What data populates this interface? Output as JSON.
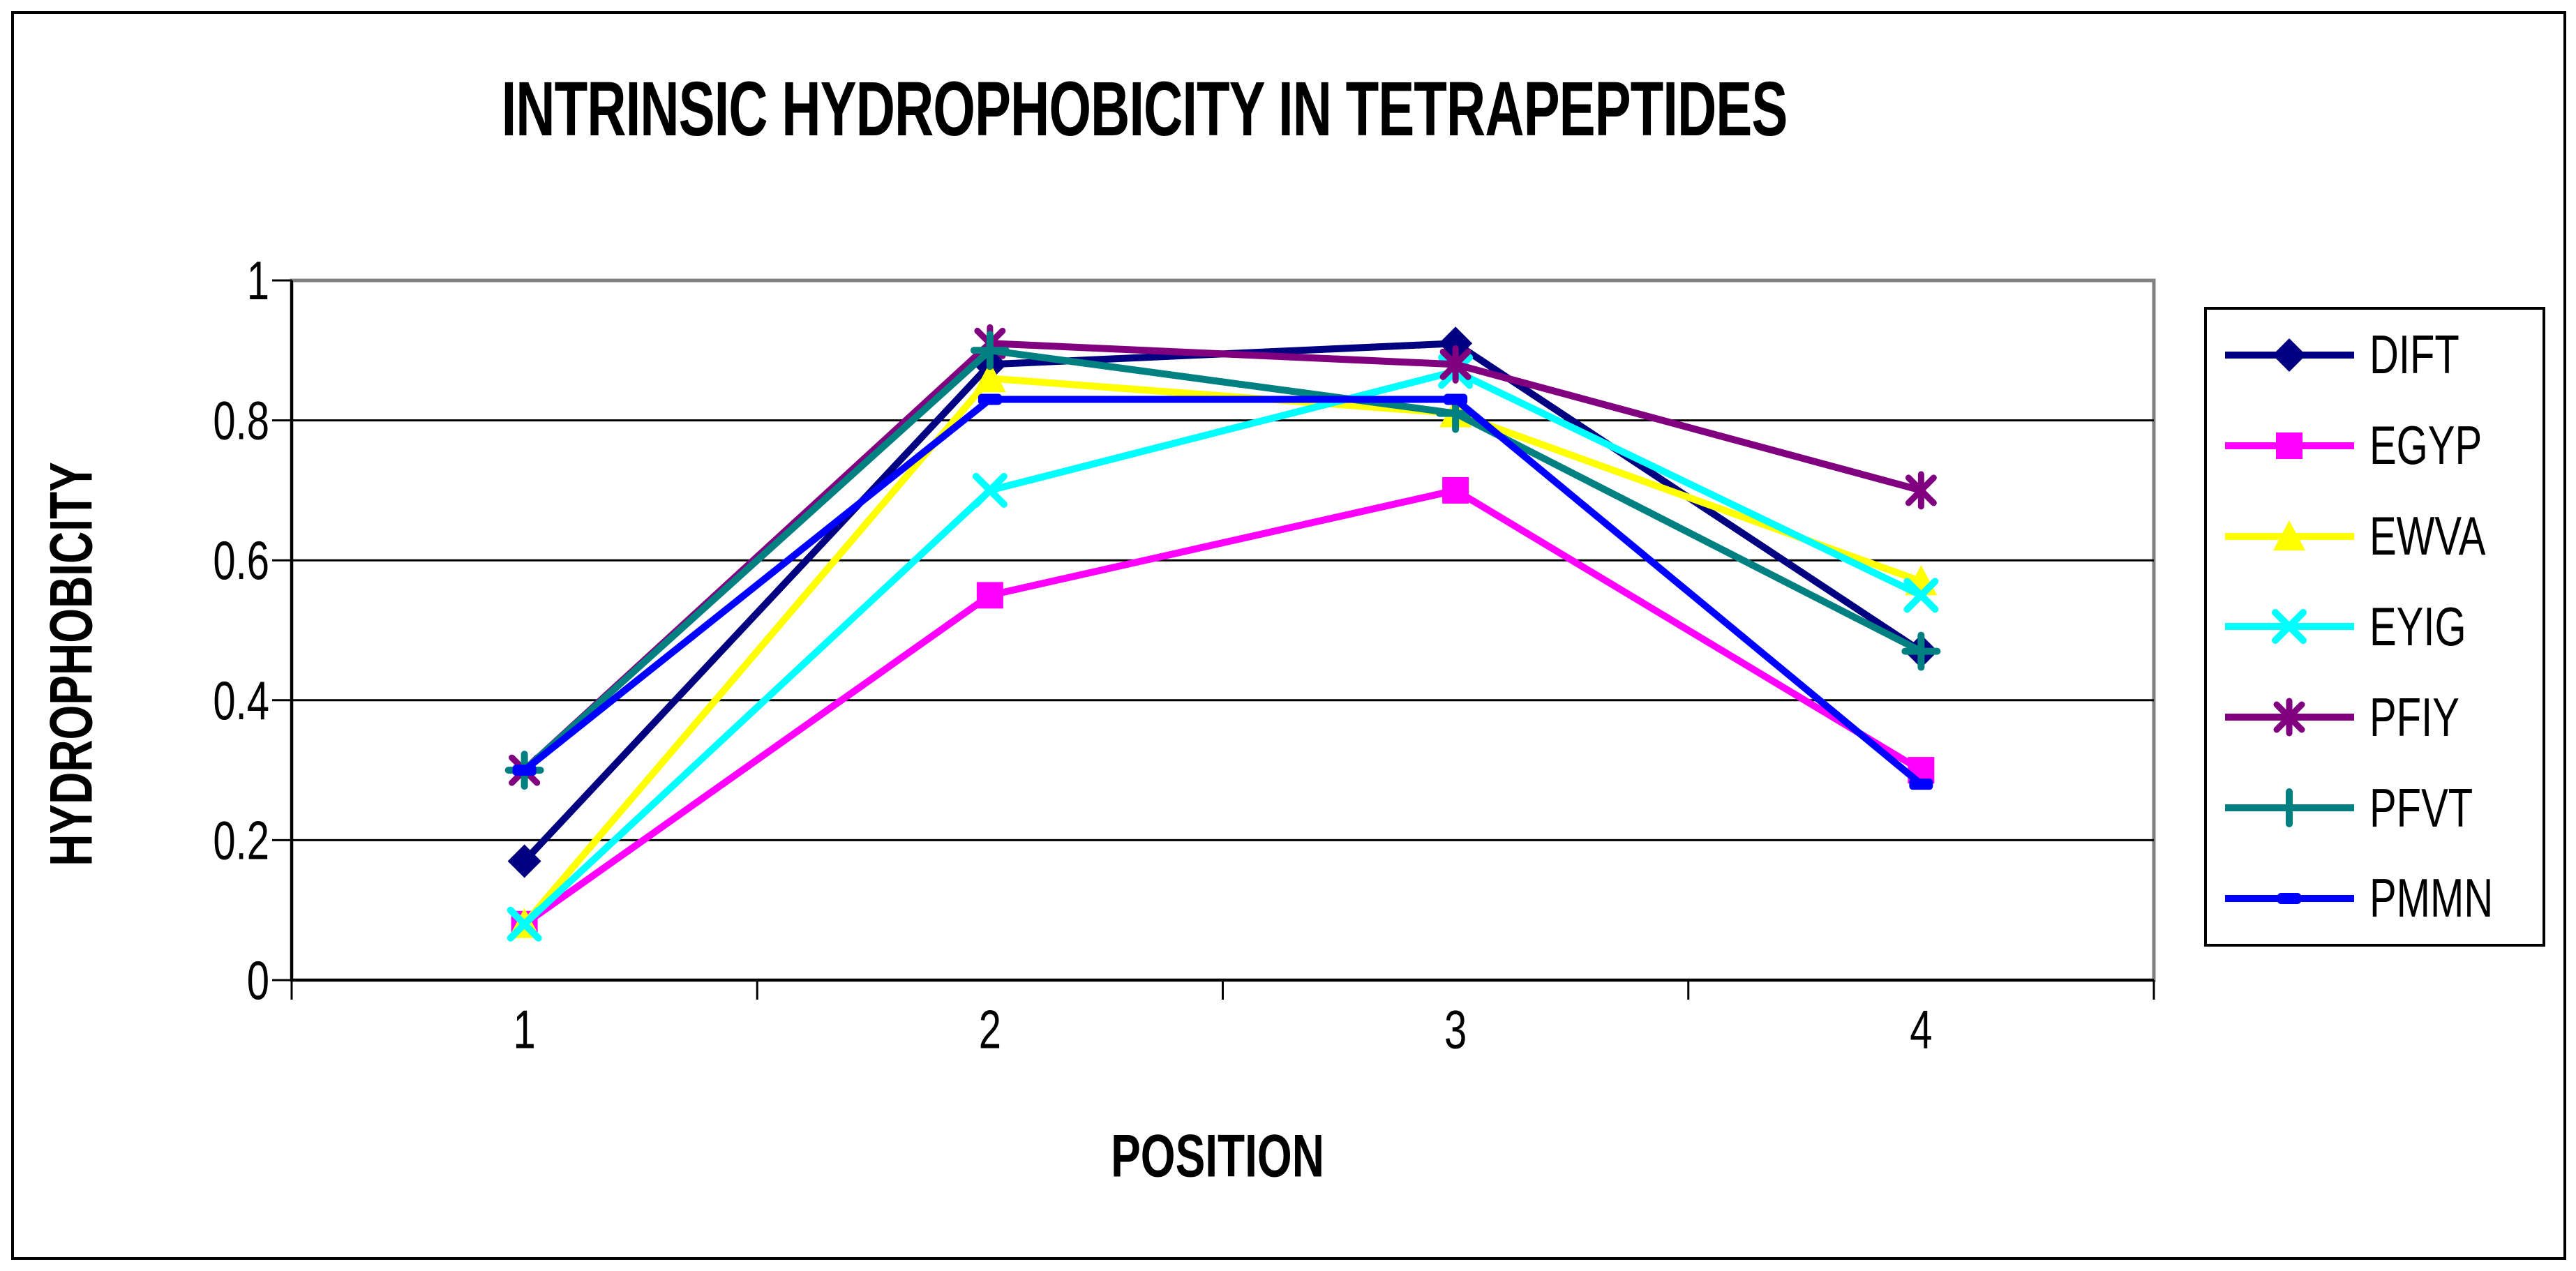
{
  "frame": {
    "background": "#FFFFFF",
    "border_color": "#000000",
    "gridline_color": "#000000",
    "plot_border_color": "#808080"
  },
  "chart_data": {
    "type": "line",
    "title": "INTRINSIC HYDROPHOBICITY IN TETRAPEPTIDES",
    "xlabel": "POSITION",
    "ylabel": "HYDROPHOBICITY",
    "categories": [
      "1",
      "2",
      "3",
      "4"
    ],
    "ylim": [
      0,
      1
    ],
    "y_ticks": [
      0,
      0.2,
      0.4,
      0.6,
      0.8,
      1
    ],
    "y_tick_labels": [
      "0",
      "0.2",
      "0.4",
      "0.6",
      "0.8",
      "1"
    ],
    "grid": true,
    "legend_position": "right",
    "series": [
      {
        "name": "DIFT",
        "color": "#000080",
        "marker": "diamond",
        "values": [
          0.17,
          0.88,
          0.91,
          0.47
        ]
      },
      {
        "name": "EGYP",
        "color": "#FF00FF",
        "marker": "square",
        "values": [
          0.08,
          0.55,
          0.7,
          0.3
        ]
      },
      {
        "name": "EWVA",
        "color": "#FFFF00",
        "marker": "triangle",
        "values": [
          0.08,
          0.86,
          0.81,
          0.57
        ]
      },
      {
        "name": "EYIG",
        "color": "#00FFFF",
        "marker": "x",
        "values": [
          0.08,
          0.7,
          0.87,
          0.55
        ]
      },
      {
        "name": "PFIY",
        "color": "#800080",
        "marker": "star",
        "values": [
          0.3,
          0.91,
          0.88,
          0.7
        ]
      },
      {
        "name": "PFVT",
        "color": "#008080",
        "marker": "plus",
        "values": [
          0.3,
          0.9,
          0.81,
          0.47
        ]
      },
      {
        "name": "PMMN",
        "color": "#0000FF",
        "marker": "dash",
        "values": [
          0.3,
          0.83,
          0.83,
          0.28
        ]
      }
    ]
  }
}
